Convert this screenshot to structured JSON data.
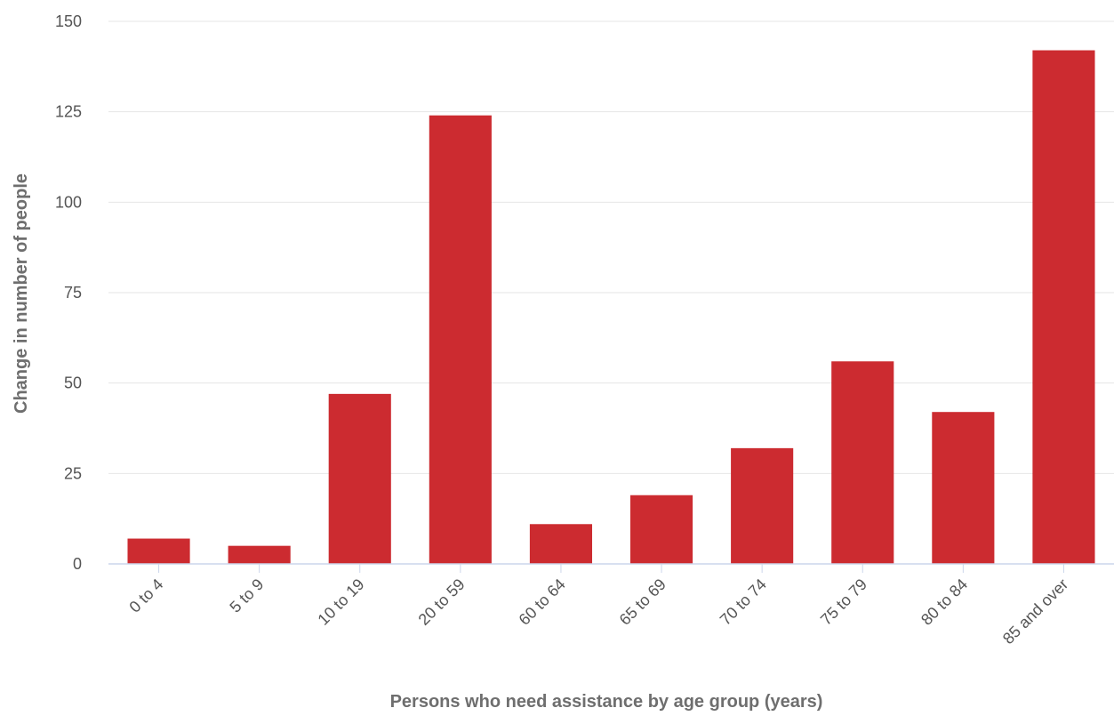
{
  "chart_data": {
    "type": "bar",
    "title": "",
    "xlabel": "Persons who need assistance by age group (years)",
    "ylabel": "Change in number of people",
    "categories": [
      "0 to 4",
      "5 to 9",
      "10 to 19",
      "20 to 59",
      "60 to 64",
      "65 to 69",
      "70 to 74",
      "75 to 79",
      "80 to 84",
      "85 and over"
    ],
    "values": [
      7,
      5,
      47,
      124,
      11,
      19,
      32,
      56,
      42,
      142
    ],
    "ylim": [
      0,
      150
    ],
    "yticks": [
      0,
      25,
      50,
      75,
      100,
      125,
      150
    ],
    "grid": true,
    "legend": "none",
    "bar_color": "#cc2b30",
    "grid_color": "#e6e6e6",
    "axis_color": "#ccd6eb"
  }
}
